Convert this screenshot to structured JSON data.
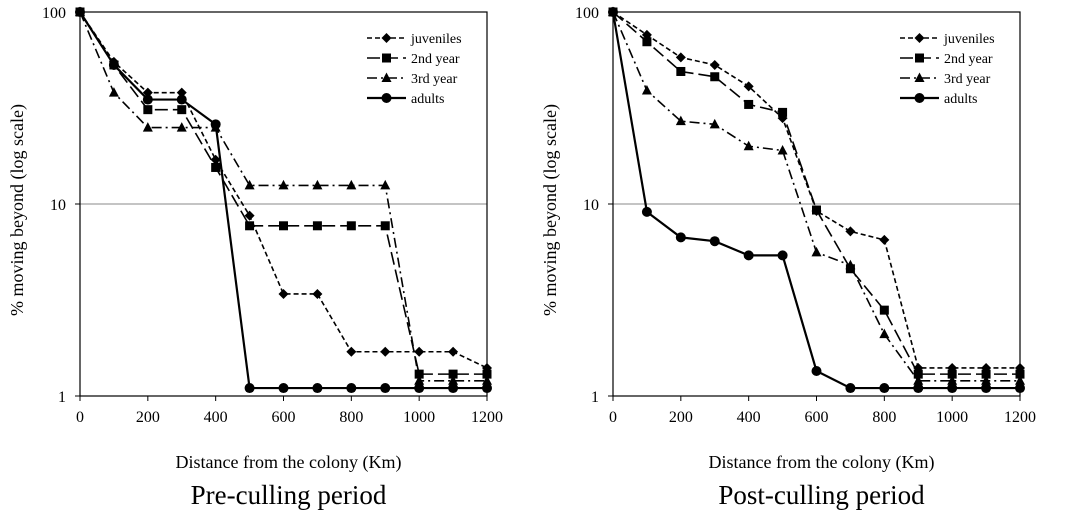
{
  "chart_data": [
    {
      "type": "line",
      "title": "Pre-culling period",
      "xlabel": "Distance from the colony (Km)",
      "ylabel": "% moving beyond (log scale)",
      "xlim": [
        0,
        1200
      ],
      "ylim": [
        1,
        100
      ],
      "y_scale": "log",
      "x_ticks": [
        "0",
        "200",
        "400",
        "600",
        "800",
        "1000",
        "1200"
      ],
      "y_ticks": [
        "1",
        "10",
        "100"
      ],
      "gridlines": [
        10
      ],
      "legend_position": "top-right",
      "x": [
        0,
        100,
        200,
        300,
        400,
        500,
        600,
        700,
        800,
        900,
        1000,
        1100,
        1200
      ],
      "series": [
        {
          "name": "juveniles",
          "marker": "diamond",
          "dash": "short-dash",
          "values": [
            100,
            55,
            38,
            38,
            17,
            8.7,
            3.4,
            3.4,
            1.7,
            1.7,
            1.7,
            1.7,
            1.4
          ]
        },
        {
          "name": "2nd year",
          "marker": "square",
          "dash": "long-dash",
          "values": [
            100,
            53,
            31,
            31,
            15.5,
            7.7,
            7.7,
            7.7,
            7.7,
            7.7,
            1.3,
            1.3,
            1.3
          ]
        },
        {
          "name": "3rd year",
          "marker": "triangle",
          "dash": "dash-dot",
          "values": [
            100,
            38,
            25,
            25,
            25,
            12.5,
            12.5,
            12.5,
            12.5,
            12.5,
            1.2,
            1.2,
            1.2
          ]
        },
        {
          "name": "adults",
          "marker": "circle",
          "dash": "solid",
          "values": [
            100,
            53,
            35,
            35,
            26,
            1.1,
            1.1,
            1.1,
            1.1,
            1.1,
            1.1,
            1.1,
            1.1
          ]
        }
      ]
    },
    {
      "type": "line",
      "title": "Post-culling period",
      "xlabel": "Distance from the colony (Km)",
      "ylabel": "% moving beyond (log scale)",
      "xlim": [
        0,
        1200
      ],
      "ylim": [
        1,
        100
      ],
      "y_scale": "log",
      "x_ticks": [
        "0",
        "200",
        "400",
        "600",
        "800",
        "1000",
        "1200"
      ],
      "y_ticks": [
        "1",
        "10",
        "100"
      ],
      "gridlines": [
        10
      ],
      "legend_position": "top-right",
      "x": [
        0,
        100,
        200,
        300,
        400,
        500,
        600,
        700,
        800,
        900,
        1000,
        1100,
        1200
      ],
      "series": [
        {
          "name": "juveniles",
          "marker": "diamond",
          "dash": "short-dash",
          "values": [
            100,
            76,
            58,
            53,
            41,
            28,
            9.2,
            7.2,
            6.5,
            1.4,
            1.4,
            1.4,
            1.4
          ]
        },
        {
          "name": "2nd year",
          "marker": "square",
          "dash": "long-dash",
          "values": [
            100,
            70,
            49,
            46,
            33,
            30,
            9.3,
            4.6,
            2.8,
            1.3,
            1.3,
            1.3,
            1.3
          ]
        },
        {
          "name": "3rd year",
          "marker": "triangle",
          "dash": "dash-dot",
          "values": [
            100,
            39,
            27,
            26,
            20,
            19,
            5.6,
            4.8,
            2.1,
            1.2,
            1.2,
            1.2,
            1.2
          ]
        },
        {
          "name": "adults",
          "marker": "circle",
          "dash": "solid",
          "values": [
            100,
            9.1,
            6.7,
            6.4,
            5.4,
            5.4,
            1.35,
            1.1,
            1.1,
            1.1,
            1.1,
            1.1,
            1.1
          ]
        }
      ]
    }
  ]
}
